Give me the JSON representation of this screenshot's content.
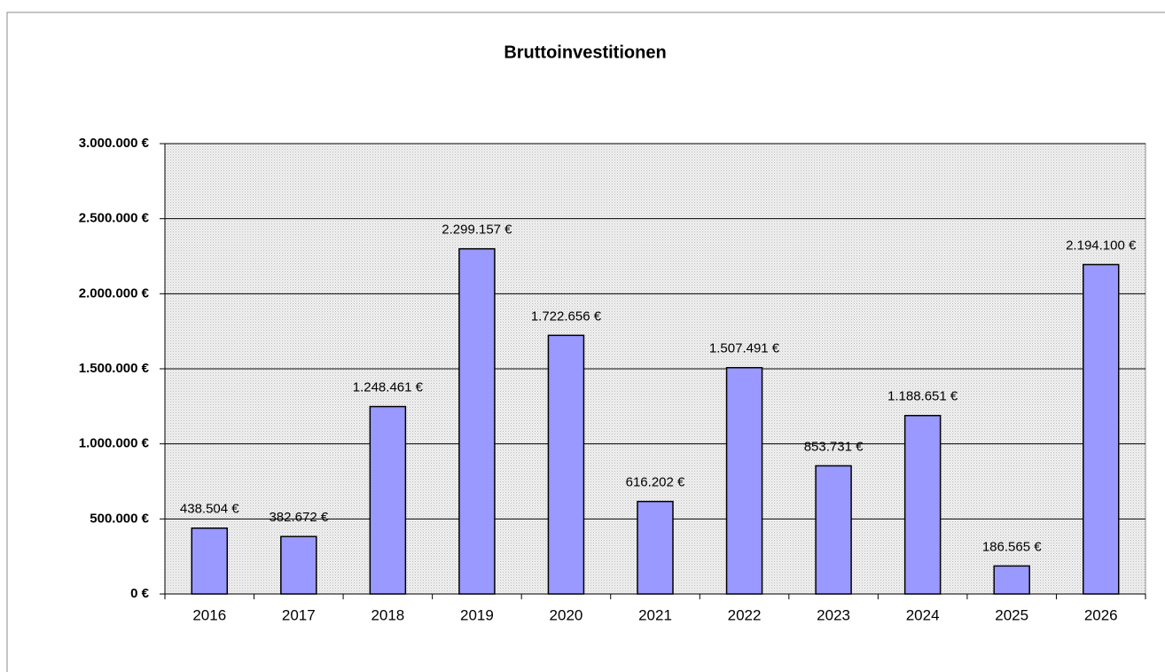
{
  "chart_data": {
    "type": "bar",
    "title": "Bruttoinvestitionen",
    "categories": [
      "2016",
      "2017",
      "2018",
      "2019",
      "2020",
      "2021",
      "2022",
      "2023",
      "2024",
      "2025",
      "2026"
    ],
    "values": [
      438504,
      382672,
      1248461,
      2299157,
      1722656,
      616202,
      1507491,
      853731,
      1188651,
      186565,
      2194100
    ],
    "value_labels": [
      "438.504 €",
      "382.672 €",
      "1.248.461 €",
      "2.299.157 €",
      "1.722.656 €",
      "616.202 €",
      "1.507.491 €",
      "853.731 €",
      "1.188.651 €",
      "186.565 €",
      "2.194.100 €"
    ],
    "color": "#9999ff",
    "ylim": [
      0,
      3000000
    ],
    "yticks": [
      {
        "value": 0,
        "label": "0 €"
      },
      {
        "value": 500000,
        "label": "500.000 €"
      },
      {
        "value": 1000000,
        "label": "1.000.000 €"
      },
      {
        "value": 1500000,
        "label": "1.500.000 €"
      },
      {
        "value": 2000000,
        "label": "2.000.000 €"
      },
      {
        "value": 2500000,
        "label": "2.500.000 €"
      },
      {
        "value": 3000000,
        "label": "3.000.000 €"
      }
    ],
    "grid": true
  }
}
